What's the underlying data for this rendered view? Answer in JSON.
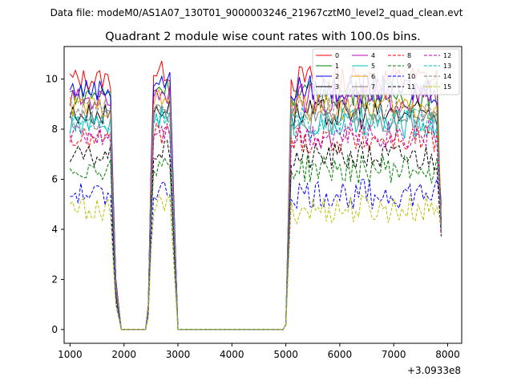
{
  "chart_data": {
    "type": "line",
    "suptitle": "Data file: modeM0/AS1A07_130T01_9000003246_21967cztM0_level2_quad_clean.evt",
    "title": "Quadrant 2 module wise count rates with 100.0s bins.",
    "xlabel": "",
    "ylabel": "",
    "x_offset_label": "+3.0933e8",
    "xlim": [
      890,
      8260
    ],
    "ylim": [
      -0.55,
      11.3
    ],
    "x_ticks": [
      1000,
      2000,
      3000,
      4000,
      5000,
      6000,
      7000,
      8000
    ],
    "x_tick_labels": [
      "1000",
      "2000",
      "3000",
      "4000",
      "5000",
      "6000",
      "7000",
      "8000"
    ],
    "y_ticks": [
      0,
      2,
      4,
      6,
      8,
      10
    ],
    "y_tick_labels": [
      "0",
      "2",
      "4",
      "6",
      "8",
      "10"
    ],
    "legend_position": "top-right",
    "bin_seconds": 100,
    "segments": [
      {
        "name": "seg1",
        "start": 1000,
        "end": 1750,
        "falloff": [
          1850,
          1950
        ]
      },
      {
        "name": "seg2",
        "start": 2550,
        "end": 2850,
        "rampup": [
          2450,
          2500
        ],
        "falloff": [
          2950,
          3000
        ]
      },
      {
        "name": "seg3",
        "start": 5100,
        "end": 7800,
        "rampup": [
          4950,
          5000
        ],
        "falloff": [
          7880
        ]
      }
    ],
    "series": [
      {
        "name": "0",
        "color": "#ff0000",
        "dash": "solid",
        "level": 10.0
      },
      {
        "name": "1",
        "color": "#008000",
        "dash": "solid",
        "level": 9.4
      },
      {
        "name": "2",
        "color": "#0000ff",
        "dash": "solid",
        "level": 9.6
      },
      {
        "name": "3",
        "color": "#000000",
        "dash": "solid",
        "level": 8.6
      },
      {
        "name": "4",
        "color": "#bf00bf",
        "dash": "solid",
        "level": 9.2
      },
      {
        "name": "5",
        "color": "#00bfbf",
        "dash": "solid",
        "level": 8.2
      },
      {
        "name": "6",
        "color": "#e6a000",
        "dash": "solid",
        "level": 8.9
      },
      {
        "name": "7",
        "color": "#808080",
        "dash": "solid",
        "level": 8.4
      },
      {
        "name": "8",
        "color": "#ff0000",
        "dash": "dashed",
        "level": 7.6
      },
      {
        "name": "9",
        "color": "#008000",
        "dash": "dashed",
        "level": 6.4
      },
      {
        "name": "10",
        "color": "#0000ff",
        "dash": "dashed",
        "level": 5.4
      },
      {
        "name": "11",
        "color": "#000000",
        "dash": "dashed",
        "level": 6.9
      },
      {
        "name": "12",
        "color": "#bf00bf",
        "dash": "dashed",
        "level": 7.8
      },
      {
        "name": "13",
        "color": "#00bfbf",
        "dash": "dashed",
        "level": 8.3
      },
      {
        "name": "14",
        "color": "#808080",
        "dash": "dashed",
        "level": 8.8
      },
      {
        "name": "15",
        "color": "#bfbf00",
        "dash": "dashed",
        "level": 4.8
      }
    ]
  }
}
